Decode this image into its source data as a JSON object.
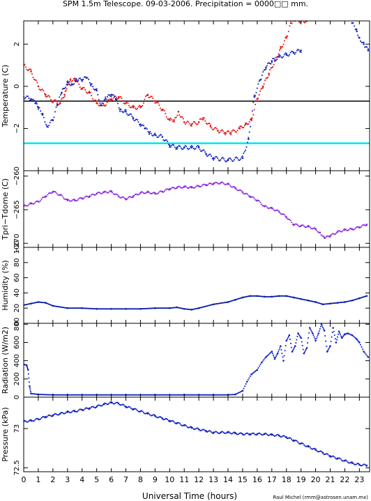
{
  "title": "SPM 1.5m Telescope. 09-03-2006. Precipitation = 0000□□ mm.",
  "xlabel": "Universal Time (hours)",
  "credit": "Raul Michel (rmm@astrosen.unam.mx)",
  "x_ticks": [
    "0",
    "1",
    "2",
    "3",
    "4",
    "5",
    "6",
    "7",
    "8",
    "9",
    "10",
    "11",
    "12",
    "13",
    "14",
    "15",
    "16",
    "17",
    "18",
    "19",
    "20",
    "21",
    "22",
    "23"
  ],
  "colors": {
    "red": "#e01818",
    "blue": "#1020c0",
    "darkblue": "#0a1aa8",
    "purple": "#8a2be2",
    "cyan": "#00e5ee",
    "black": "#000000"
  },
  "chart_data": [
    {
      "type": "scatter",
      "id": "temperature",
      "ylabel": "Temperature (C)",
      "ylim": [
        -4.0,
        3.1
      ],
      "yticks": [
        -2,
        0,
        2
      ],
      "ytick_labels": [
        "−2",
        "0",
        "2"
      ],
      "reference_lines": [
        {
          "y": -0.7,
          "color": "#000000"
        },
        {
          "y": -2.7,
          "color": "#00e5ee"
        }
      ],
      "series": [
        {
          "color": "#e01818",
          "x": [
            0,
            0.5,
            1,
            1.5,
            2,
            2.5,
            2.8,
            3,
            3.2,
            3.5,
            4,
            4.5,
            5,
            5.5,
            6,
            6.5,
            7,
            7.5,
            8,
            8.5,
            9,
            9.5,
            10,
            10.3,
            10.6,
            11,
            11.5,
            12,
            12.3,
            12.8,
            13.3,
            13.8,
            14.2,
            14.8,
            15.2,
            15.6,
            16,
            16.4,
            16.8,
            17.2,
            17.6,
            18,
            18.3,
            18.6,
            19,
            19.4
          ],
          "y": [
            1.0,
            0.7,
            0.0,
            -0.4,
            -0.7,
            -0.8,
            -0.4,
            0.1,
            0.3,
            0.3,
            -0.1,
            -0.3,
            -0.8,
            -0.9,
            -0.6,
            -0.5,
            -0.8,
            -1.0,
            -1.0,
            -0.4,
            -0.7,
            -1.1,
            -1.6,
            -1.6,
            -1.2,
            -1.7,
            -1.8,
            -1.7,
            -1.5,
            -1.9,
            -2.1,
            -2.2,
            -2.2,
            -2.0,
            -1.8,
            -1.6,
            -0.6,
            0.0,
            0.6,
            1.2,
            1.8,
            2.3,
            3.0,
            3.1,
            3.1,
            3.1
          ]
        },
        {
          "color": "#1020c0",
          "x": [
            0,
            0.5,
            0.8,
            1,
            1.3,
            1.6,
            2,
            2.3,
            2.6,
            3,
            3.3,
            3.6,
            4,
            4.3,
            4.6,
            5,
            5.3,
            5.6,
            6,
            6.3,
            6.6,
            7,
            7.5,
            8,
            8.3,
            8.6,
            9,
            9.5,
            10,
            10.5,
            11,
            11.5,
            12,
            12.5,
            13,
            14,
            15,
            15.4,
            15.8,
            16.2,
            16.6,
            17,
            17.5,
            18,
            18.5,
            19
          ],
          "y": [
            -0.5,
            -0.6,
            -0.8,
            -1.0,
            -1.3,
            -1.9,
            -1.6,
            -0.9,
            -0.3,
            0.2,
            0.1,
            0.3,
            0.3,
            0.4,
            0.1,
            -0.2,
            -0.9,
            -0.6,
            -0.4,
            -0.6,
            -1.1,
            -1.2,
            -1.5,
            -1.8,
            -2.0,
            -2.2,
            -2.3,
            -2.4,
            -2.8,
            -2.9,
            -2.9,
            -2.9,
            -2.9,
            -3.2,
            -3.4,
            -3.5,
            -3.4,
            -2.5,
            -0.5,
            0.3,
            0.9,
            1.2,
            1.4,
            1.5,
            1.6,
            1.7
          ]
        },
        {
          "color": "#1020c0",
          "x": [
            22.5,
            22.8,
            23,
            23.3,
            23.6
          ],
          "y": [
            3.0,
            2.7,
            2.3,
            2.0,
            1.7
          ]
        }
      ]
    },
    {
      "type": "scatter",
      "id": "tpri_tdome",
      "ylabel": "Tpri−Tdome (C)",
      "ylim": [
        -270.6,
        -259.2
      ],
      "yticks": [
        -270,
        -265,
        -260
      ],
      "ytick_labels": [
        "−270",
        "−265",
        "−260"
      ],
      "series": [
        {
          "color": "#8a2be2",
          "x": [
            0,
            0.5,
            1,
            1.5,
            2,
            2.5,
            3,
            3.5,
            4,
            4.5,
            5,
            5.5,
            6,
            6.5,
            7,
            7.5,
            8,
            8.5,
            9,
            9.5,
            10,
            10.5,
            11,
            11.5,
            12,
            12.5,
            13,
            13.5,
            14,
            14.5,
            15,
            15.5,
            16,
            16.5,
            17,
            17.5,
            18,
            18.5,
            19,
            19.5,
            20,
            20.3,
            20.6,
            21,
            21.5,
            22,
            22.5,
            23,
            23.5
          ],
          "y": [
            -264.5,
            -264.1,
            -263.8,
            -263.0,
            -262.3,
            -262.8,
            -263.6,
            -263.6,
            -263.3,
            -263.0,
            -262.6,
            -262.4,
            -262.3,
            -263.0,
            -263.4,
            -263.0,
            -262.5,
            -262.4,
            -262.6,
            -262.3,
            -261.9,
            -261.7,
            -261.6,
            -261.7,
            -261.5,
            -261.3,
            -261.1,
            -261.0,
            -261.2,
            -261.8,
            -262.4,
            -263.0,
            -263.6,
            -264.5,
            -264.8,
            -265.3,
            -266.1,
            -267.2,
            -267.4,
            -267.5,
            -267.9,
            -268.4,
            -269.2,
            -268.9,
            -268.3,
            -268.0,
            -267.9,
            -267.6,
            -267.2
          ]
        }
      ]
    },
    {
      "type": "line",
      "id": "humidity",
      "ylabel": "Humidity (%)",
      "ylim": [
        0,
        100
      ],
      "yticks": [
        0,
        20,
        40,
        60,
        80,
        100
      ],
      "ytick_labels": [
        "0",
        "20",
        "40",
        "60",
        "80",
        "100"
      ],
      "series": [
        {
          "color": "#0a1aa8",
          "x": [
            0,
            0.5,
            1,
            1.5,
            2,
            3,
            4,
            5,
            6,
            7,
            8,
            9,
            10,
            10.5,
            11,
            11.5,
            12,
            13,
            14,
            14.5,
            15,
            15.5,
            16,
            16.5,
            17,
            17.5,
            18,
            18.5,
            19,
            19.5,
            20,
            20.5,
            21,
            21.5,
            22,
            22.5,
            23,
            23.5
          ],
          "y": [
            24,
            26,
            28,
            27,
            23,
            20,
            20,
            19,
            19,
            19,
            19,
            20,
            20,
            21,
            19,
            18,
            20,
            25,
            28,
            31,
            34,
            36,
            36,
            35,
            35,
            36,
            36,
            34,
            32,
            30,
            28,
            25,
            26,
            27,
            28,
            30,
            33,
            36
          ]
        }
      ]
    },
    {
      "type": "line",
      "id": "radiation",
      "ylabel": "Radiation (W/m2)",
      "ylim": [
        0,
        810
      ],
      "yticks": [
        0,
        200,
        400,
        600,
        800
      ],
      "ytick_labels": [
        "0",
        "200",
        "400",
        "600",
        "800"
      ],
      "series": [
        {
          "color": "#1020c0",
          "x": [
            0,
            0.2,
            0.3,
            0.4,
            0.5,
            1,
            2,
            3,
            5,
            7,
            9,
            11,
            13,
            14,
            14.5,
            15,
            15.3,
            15.6,
            16,
            16.3,
            16.6,
            17,
            17.2,
            17.4,
            17.6,
            17.8,
            18,
            18.2,
            18.4,
            18.6,
            18.8,
            19,
            19.2,
            19.4,
            19.6,
            19.8,
            20,
            20.2,
            20.4,
            20.6,
            20.8,
            21,
            21.2,
            21.4,
            21.6,
            21.8,
            22,
            22.2,
            22.5,
            22.8,
            23,
            23.3,
            23.6
          ],
          "y": [
            360,
            350,
            300,
            120,
            40,
            30,
            25,
            25,
            25,
            25,
            25,
            25,
            25,
            25,
            30,
            70,
            170,
            250,
            300,
            380,
            440,
            500,
            420,
            480,
            560,
            400,
            620,
            680,
            500,
            560,
            700,
            650,
            480,
            540,
            760,
            700,
            620,
            700,
            800,
            730,
            500,
            560,
            760,
            600,
            720,
            650,
            690,
            700,
            680,
            640,
            600,
            500,
            440
          ]
        }
      ]
    },
    {
      "type": "scatter",
      "id": "pressure",
      "ylabel": "Pressure (kPa)",
      "ylim": [
        72.45,
        73.4
      ],
      "yticks": [
        72.5,
        73
      ],
      "ytick_labels": [
        "72.5",
        "73"
      ],
      "series": [
        {
          "color": "#1020c0",
          "x": [
            0,
            0.5,
            1,
            1.5,
            2,
            2.5,
            3,
            3.5,
            4,
            4.5,
            5,
            5.5,
            6,
            6.5,
            7,
            7.5,
            8,
            8.5,
            9,
            9.5,
            10,
            10.5,
            11,
            11.5,
            12,
            12.5,
            13,
            13.5,
            14,
            14.5,
            15,
            15.5,
            16,
            16.5,
            17,
            17.5,
            18,
            18.5,
            19,
            19.5,
            20,
            20.5,
            21,
            21.5,
            22,
            22.5,
            23,
            23.5
          ],
          "y": [
            73.09,
            73.1,
            73.12,
            73.15,
            73.17,
            73.19,
            73.21,
            73.22,
            73.24,
            73.26,
            73.28,
            73.31,
            73.33,
            73.32,
            73.28,
            73.25,
            73.22,
            73.19,
            73.16,
            73.13,
            73.1,
            73.07,
            73.04,
            73.01,
            72.99,
            72.97,
            72.95,
            72.95,
            72.95,
            72.94,
            72.93,
            72.93,
            72.93,
            72.93,
            72.92,
            72.91,
            72.89,
            72.85,
            72.81,
            72.77,
            72.73,
            72.69,
            72.65,
            72.62,
            72.59,
            72.56,
            72.54,
            72.53
          ]
        }
      ]
    }
  ]
}
